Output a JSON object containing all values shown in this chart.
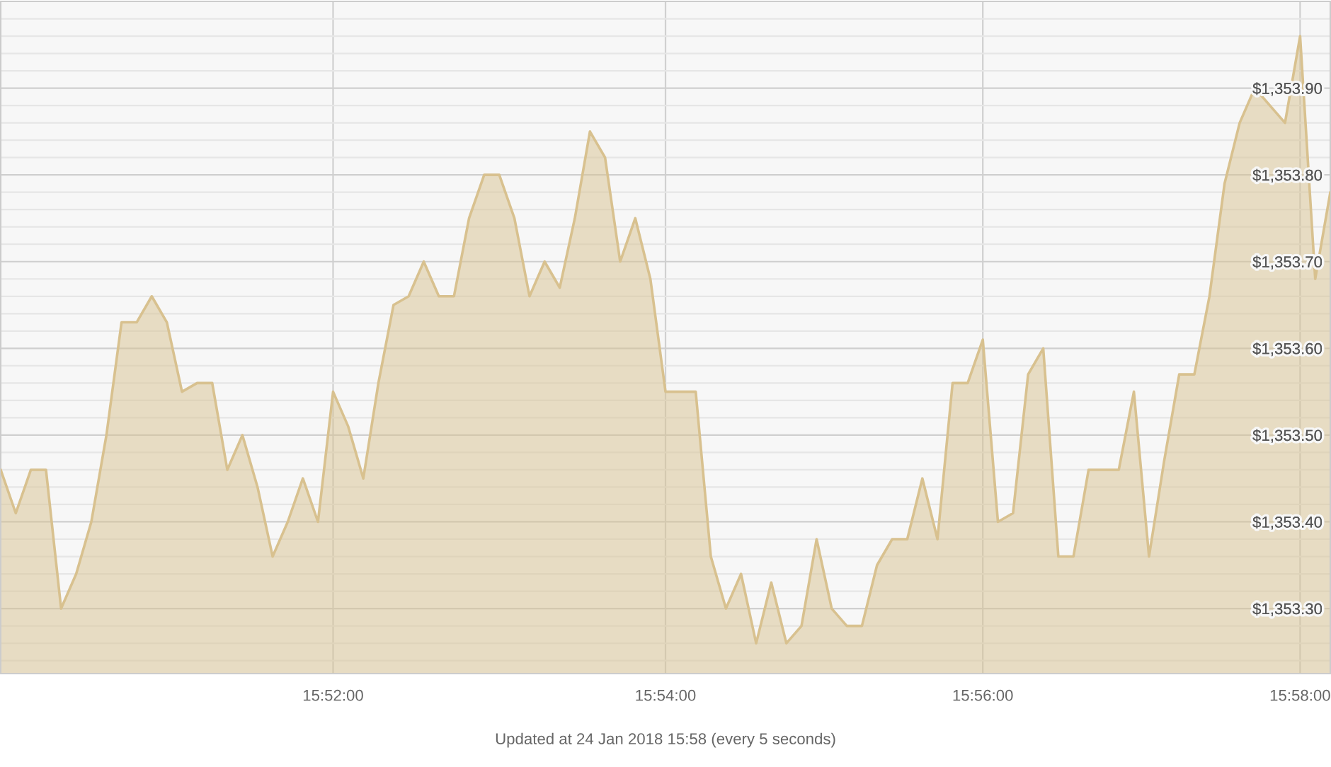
{
  "chart_data": {
    "type": "area",
    "categories": [
      null,
      null,
      null,
      null,
      null,
      null,
      null,
      null,
      null,
      null,
      null,
      null,
      null,
      null,
      null,
      null,
      null,
      null,
      null,
      null,
      null,
      null,
      "15:52:00",
      null,
      null,
      null,
      null,
      null,
      null,
      null,
      null,
      null,
      null,
      null,
      null,
      null,
      null,
      null,
      null,
      null,
      null,
      null,
      null,
      null,
      "15:54:00",
      null,
      null,
      null,
      null,
      null,
      null,
      null,
      null,
      null,
      null,
      null,
      null,
      null,
      null,
      null,
      null,
      null,
      null,
      null,
      null,
      "15:56:00",
      null,
      null,
      null,
      null,
      null,
      null,
      null,
      null,
      null,
      null,
      null,
      null,
      null,
      null,
      null,
      null,
      null,
      null,
      null,
      null,
      "15:58:00",
      null,
      null
    ],
    "color": "#d8c18f",
    "values": [
      1353.46,
      1353.41,
      1353.46,
      1353.46,
      1353.3,
      1353.34,
      1353.4,
      1353.5,
      1353.63,
      1353.63,
      1353.66,
      1353.63,
      1353.55,
      1353.56,
      1353.56,
      1353.46,
      1353.5,
      1353.44,
      1353.36,
      1353.4,
      1353.45,
      1353.4,
      1353.55,
      1353.51,
      1353.45,
      1353.56,
      1353.65,
      1353.66,
      1353.7,
      1353.66,
      1353.66,
      1353.75,
      1353.8,
      1353.8,
      1353.75,
      1353.66,
      1353.7,
      1353.67,
      1353.75,
      1353.85,
      1353.82,
      1353.7,
      1353.75,
      1353.68,
      1353.55,
      1353.55,
      1353.55,
      1353.36,
      1353.3,
      1353.34,
      1353.26,
      1353.33,
      1353.26,
      1353.28,
      1353.38,
      1353.3,
      1353.28,
      1353.28,
      1353.35,
      1353.38,
      1353.38,
      1353.45,
      1353.38,
      1353.56,
      1353.56,
      1353.61,
      1353.4,
      1353.41,
      1353.57,
      1353.6,
      1353.36,
      1353.36,
      1353.46,
      1353.46,
      1353.46,
      1353.55,
      1353.36,
      1353.47,
      1353.57,
      1353.57,
      1353.66,
      1353.79,
      1353.86,
      1353.9,
      1353.88,
      1353.86,
      1353.96,
      1353.68,
      1353.78
    ],
    "ylim": [
      1353.225,
      1354.0
    ],
    "yticks": [
      {
        "value": 1353.24,
        "label": null
      },
      {
        "value": 1353.26,
        "label": null
      },
      {
        "value": 1353.28,
        "label": null
      },
      {
        "value": 1353.3,
        "label": "$1,353.30"
      },
      {
        "value": 1353.32,
        "label": null
      },
      {
        "value": 1353.34,
        "label": null
      },
      {
        "value": 1353.36,
        "label": null
      },
      {
        "value": 1353.38,
        "label": null
      },
      {
        "value": 1353.4,
        "label": "$1,353.40"
      },
      {
        "value": 1353.42,
        "label": null
      },
      {
        "value": 1353.44,
        "label": null
      },
      {
        "value": 1353.46,
        "label": null
      },
      {
        "value": 1353.48,
        "label": null
      },
      {
        "value": 1353.5,
        "label": "$1,353.50"
      },
      {
        "value": 1353.52,
        "label": null
      },
      {
        "value": 1353.54,
        "label": null
      },
      {
        "value": 1353.56,
        "label": null
      },
      {
        "value": 1353.58,
        "label": null
      },
      {
        "value": 1353.6,
        "label": "$1,353.60"
      },
      {
        "value": 1353.62,
        "label": null
      },
      {
        "value": 1353.64,
        "label": null
      },
      {
        "value": 1353.66,
        "label": null
      },
      {
        "value": 1353.68,
        "label": null
      },
      {
        "value": 1353.7,
        "label": "$1,353.70"
      },
      {
        "value": 1353.72,
        "label": null
      },
      {
        "value": 1353.74,
        "label": null
      },
      {
        "value": 1353.76,
        "label": null
      },
      {
        "value": 1353.78,
        "label": null
      },
      {
        "value": 1353.8,
        "label": "$1,353.80"
      },
      {
        "value": 1353.82,
        "label": null
      },
      {
        "value": 1353.84,
        "label": null
      },
      {
        "value": 1353.86,
        "label": null
      },
      {
        "value": 1353.88,
        "label": null
      },
      {
        "value": 1353.9,
        "label": "$1,353.90"
      },
      {
        "value": 1353.92,
        "label": null
      },
      {
        "value": 1353.94,
        "label": null
      },
      {
        "value": 1353.96,
        "label": null
      },
      {
        "value": 1353.98,
        "label": null
      }
    ],
    "grid": true,
    "annotations": [
      "Updated at 24 Jan 2018 15:58 (every 5 seconds)"
    ]
  }
}
